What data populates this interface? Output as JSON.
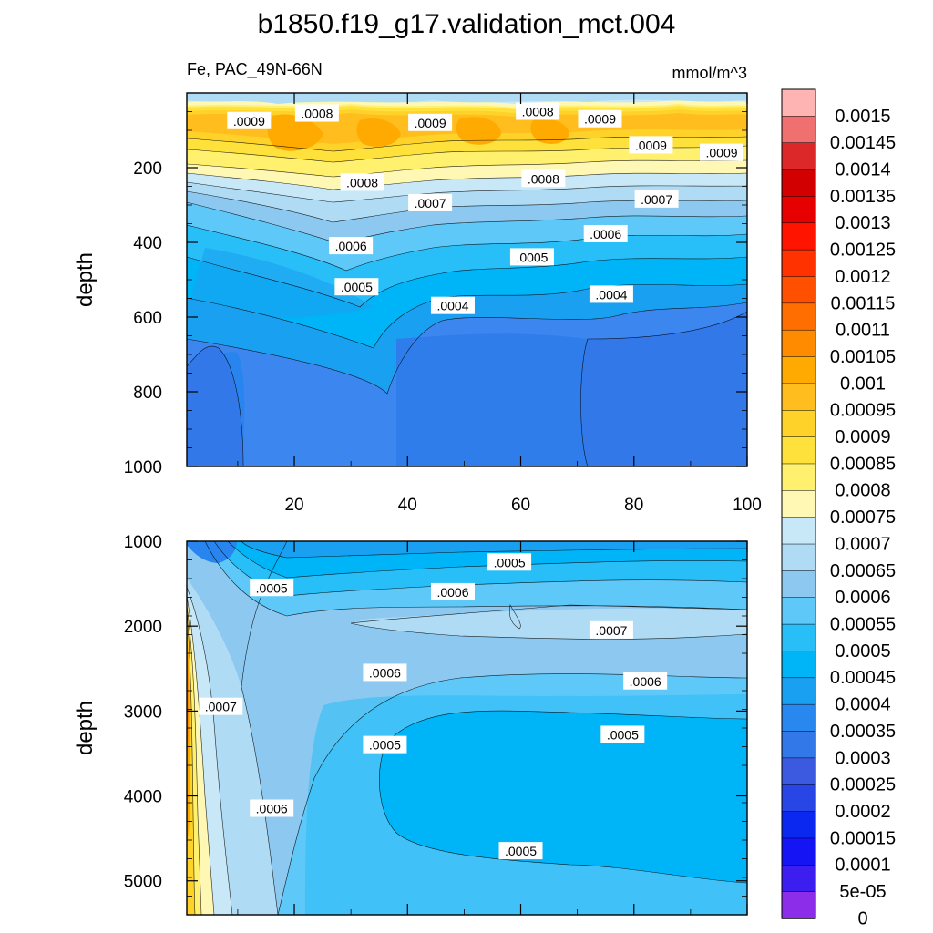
{
  "title": "b1850.f19_g17.validation_mct.004",
  "chart_data": {
    "type": "contour",
    "title": "b1850.f19_g17.validation_mct.004",
    "left_label": "Fe, PAC_49N-66N",
    "right_label": "mmol/m^3",
    "colorbar": {
      "levels": [
        "0.0015",
        "0.00145",
        "0.0014",
        "0.00135",
        "0.0013",
        "0.00125",
        "0.0012",
        "0.00115",
        "0.0011",
        "0.00105",
        "0.001",
        "0.00095",
        "0.0009",
        "0.00085",
        "0.0008",
        "0.00075",
        "0.0007",
        "0.00065",
        "0.0006",
        "0.00055",
        "0.0005",
        "0.00045",
        "0.0004",
        "0.00035",
        "0.0003",
        "0.00025",
        "0.0002",
        "0.00015",
        "0.0001",
        "5e-05",
        "0"
      ],
      "colors": [
        "#ffb4b4",
        "#f07070",
        "#dc2828",
        "#d20000",
        "#e60000",
        "#ff1400",
        "#ff3200",
        "#ff5000",
        "#ff6e00",
        "#ff8c00",
        "#ffaa00",
        "#ffbe1e",
        "#ffd22a",
        "#ffe13c",
        "#fff06e",
        "#fff8b4",
        "#c8e8f8",
        "#afdcf4",
        "#8cc8f0",
        "#5ec8f8",
        "#28bef8",
        "#00b4f8",
        "#1aa0f0",
        "#2888f0",
        "#3278e8",
        "#3c5ae0",
        "#2846e6",
        "#0a28f0",
        "#1414f5",
        "#3c1ef0",
        "#8c2dea"
      ]
    },
    "panels": [
      {
        "name": "upper",
        "ylabel": "depth",
        "ylim": [
          1000,
          0
        ],
        "xlim": [
          1,
          100
        ],
        "yticks": [
          "200",
          "400",
          "600",
          "800",
          "1000"
        ],
        "xticks": [
          "20",
          "40",
          "60",
          "80",
          "100"
        ],
        "contour_labels": [
          {
            "text": ".0009",
            "x": 12,
            "y": 75
          },
          {
            "text": ".0008",
            "x": 24,
            "y": 55
          },
          {
            "text": ".0009",
            "x": 44,
            "y": 80
          },
          {
            "text": ".0008",
            "x": 63,
            "y": 50
          },
          {
            "text": ".0009",
            "x": 74,
            "y": 70
          },
          {
            "text": ".0009",
            "x": 83,
            "y": 140
          },
          {
            "text": ".0009",
            "x": 96,
            "y": 160
          },
          {
            "text": ".0008",
            "x": 32,
            "y": 240
          },
          {
            "text": ".0008",
            "x": 64,
            "y": 230
          },
          {
            "text": ".0007",
            "x": 44,
            "y": 295
          },
          {
            "text": ".0007",
            "x": 84,
            "y": 285
          },
          {
            "text": ".0006",
            "x": 30,
            "y": 410
          },
          {
            "text": ".0006",
            "x": 75,
            "y": 378
          },
          {
            "text": ".0005",
            "x": 62,
            "y": 440
          },
          {
            "text": ".0005",
            "x": 31,
            "y": 520
          },
          {
            "text": ".0004",
            "x": 48,
            "y": 570
          },
          {
            "text": ".0004",
            "x": 76,
            "y": 540
          }
        ]
      },
      {
        "name": "lower",
        "ylabel": "depth",
        "ylim": [
          5400,
          1000
        ],
        "xlim": [
          1,
          100
        ],
        "yticks": [
          "1000",
          "2000",
          "3000",
          "4000",
          "5000"
        ],
        "contour_labels": [
          {
            "text": ".0005",
            "x": 58,
            "y": 1250
          },
          {
            "text": ".0005",
            "x": 16,
            "y": 1550
          },
          {
            "text": ".0006",
            "x": 48,
            "y": 1600
          },
          {
            "text": ".0007",
            "x": 76,
            "y": 2050
          },
          {
            "text": ".0006",
            "x": 36,
            "y": 2550
          },
          {
            "text": ".0006",
            "x": 82,
            "y": 2650
          },
          {
            "text": ".0007",
            "x": 7,
            "y": 2950
          },
          {
            "text": ".0005",
            "x": 36,
            "y": 3400
          },
          {
            "text": ".0005",
            "x": 78,
            "y": 3280
          },
          {
            "text": ".0006",
            "x": 16,
            "y": 4150
          },
          {
            "text": ".0005",
            "x": 60,
            "y": 4650
          }
        ]
      }
    ]
  }
}
